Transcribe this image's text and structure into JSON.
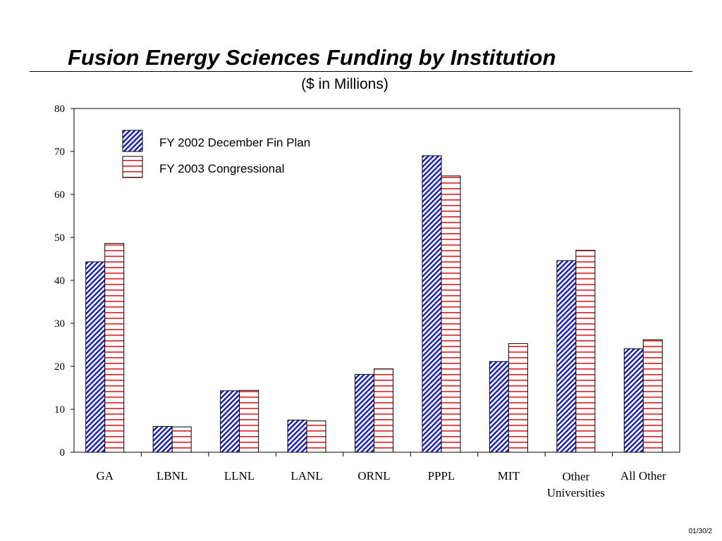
{
  "page": {
    "title": "Fusion Energy Sciences Funding by Institution",
    "subtitle": "($ in Millions)",
    "footer": "01/30/2"
  },
  "chart_data": {
    "type": "bar",
    "ylim": [
      0,
      80
    ],
    "yticks": [
      0,
      10,
      20,
      30,
      40,
      50,
      60,
      70,
      80
    ],
    "grid": false,
    "legend_position": "top-left",
    "categories": [
      [
        "GA"
      ],
      [
        "LBNL"
      ],
      [
        "LLNL"
      ],
      [
        "LANL"
      ],
      [
        "ORNL"
      ],
      [
        "PPPL"
      ],
      [
        "MIT"
      ],
      [
        "Other",
        "Universities"
      ],
      [
        "All Other"
      ]
    ],
    "series": [
      {
        "name": "FY 2002 December Fin Plan",
        "color": "#1c22b4",
        "pattern": "diagonal-hatch",
        "values": [
          44.3,
          6.0,
          14.3,
          7.5,
          18.1,
          69.0,
          21.1,
          44.6,
          24.1
        ]
      },
      {
        "name": "FY 2003 Congressional",
        "color": "#e02020",
        "pattern": "horizontal-lines",
        "values": [
          48.6,
          5.9,
          14.4,
          7.3,
          19.4,
          64.3,
          25.3,
          47.0,
          26.2
        ]
      }
    ]
  }
}
